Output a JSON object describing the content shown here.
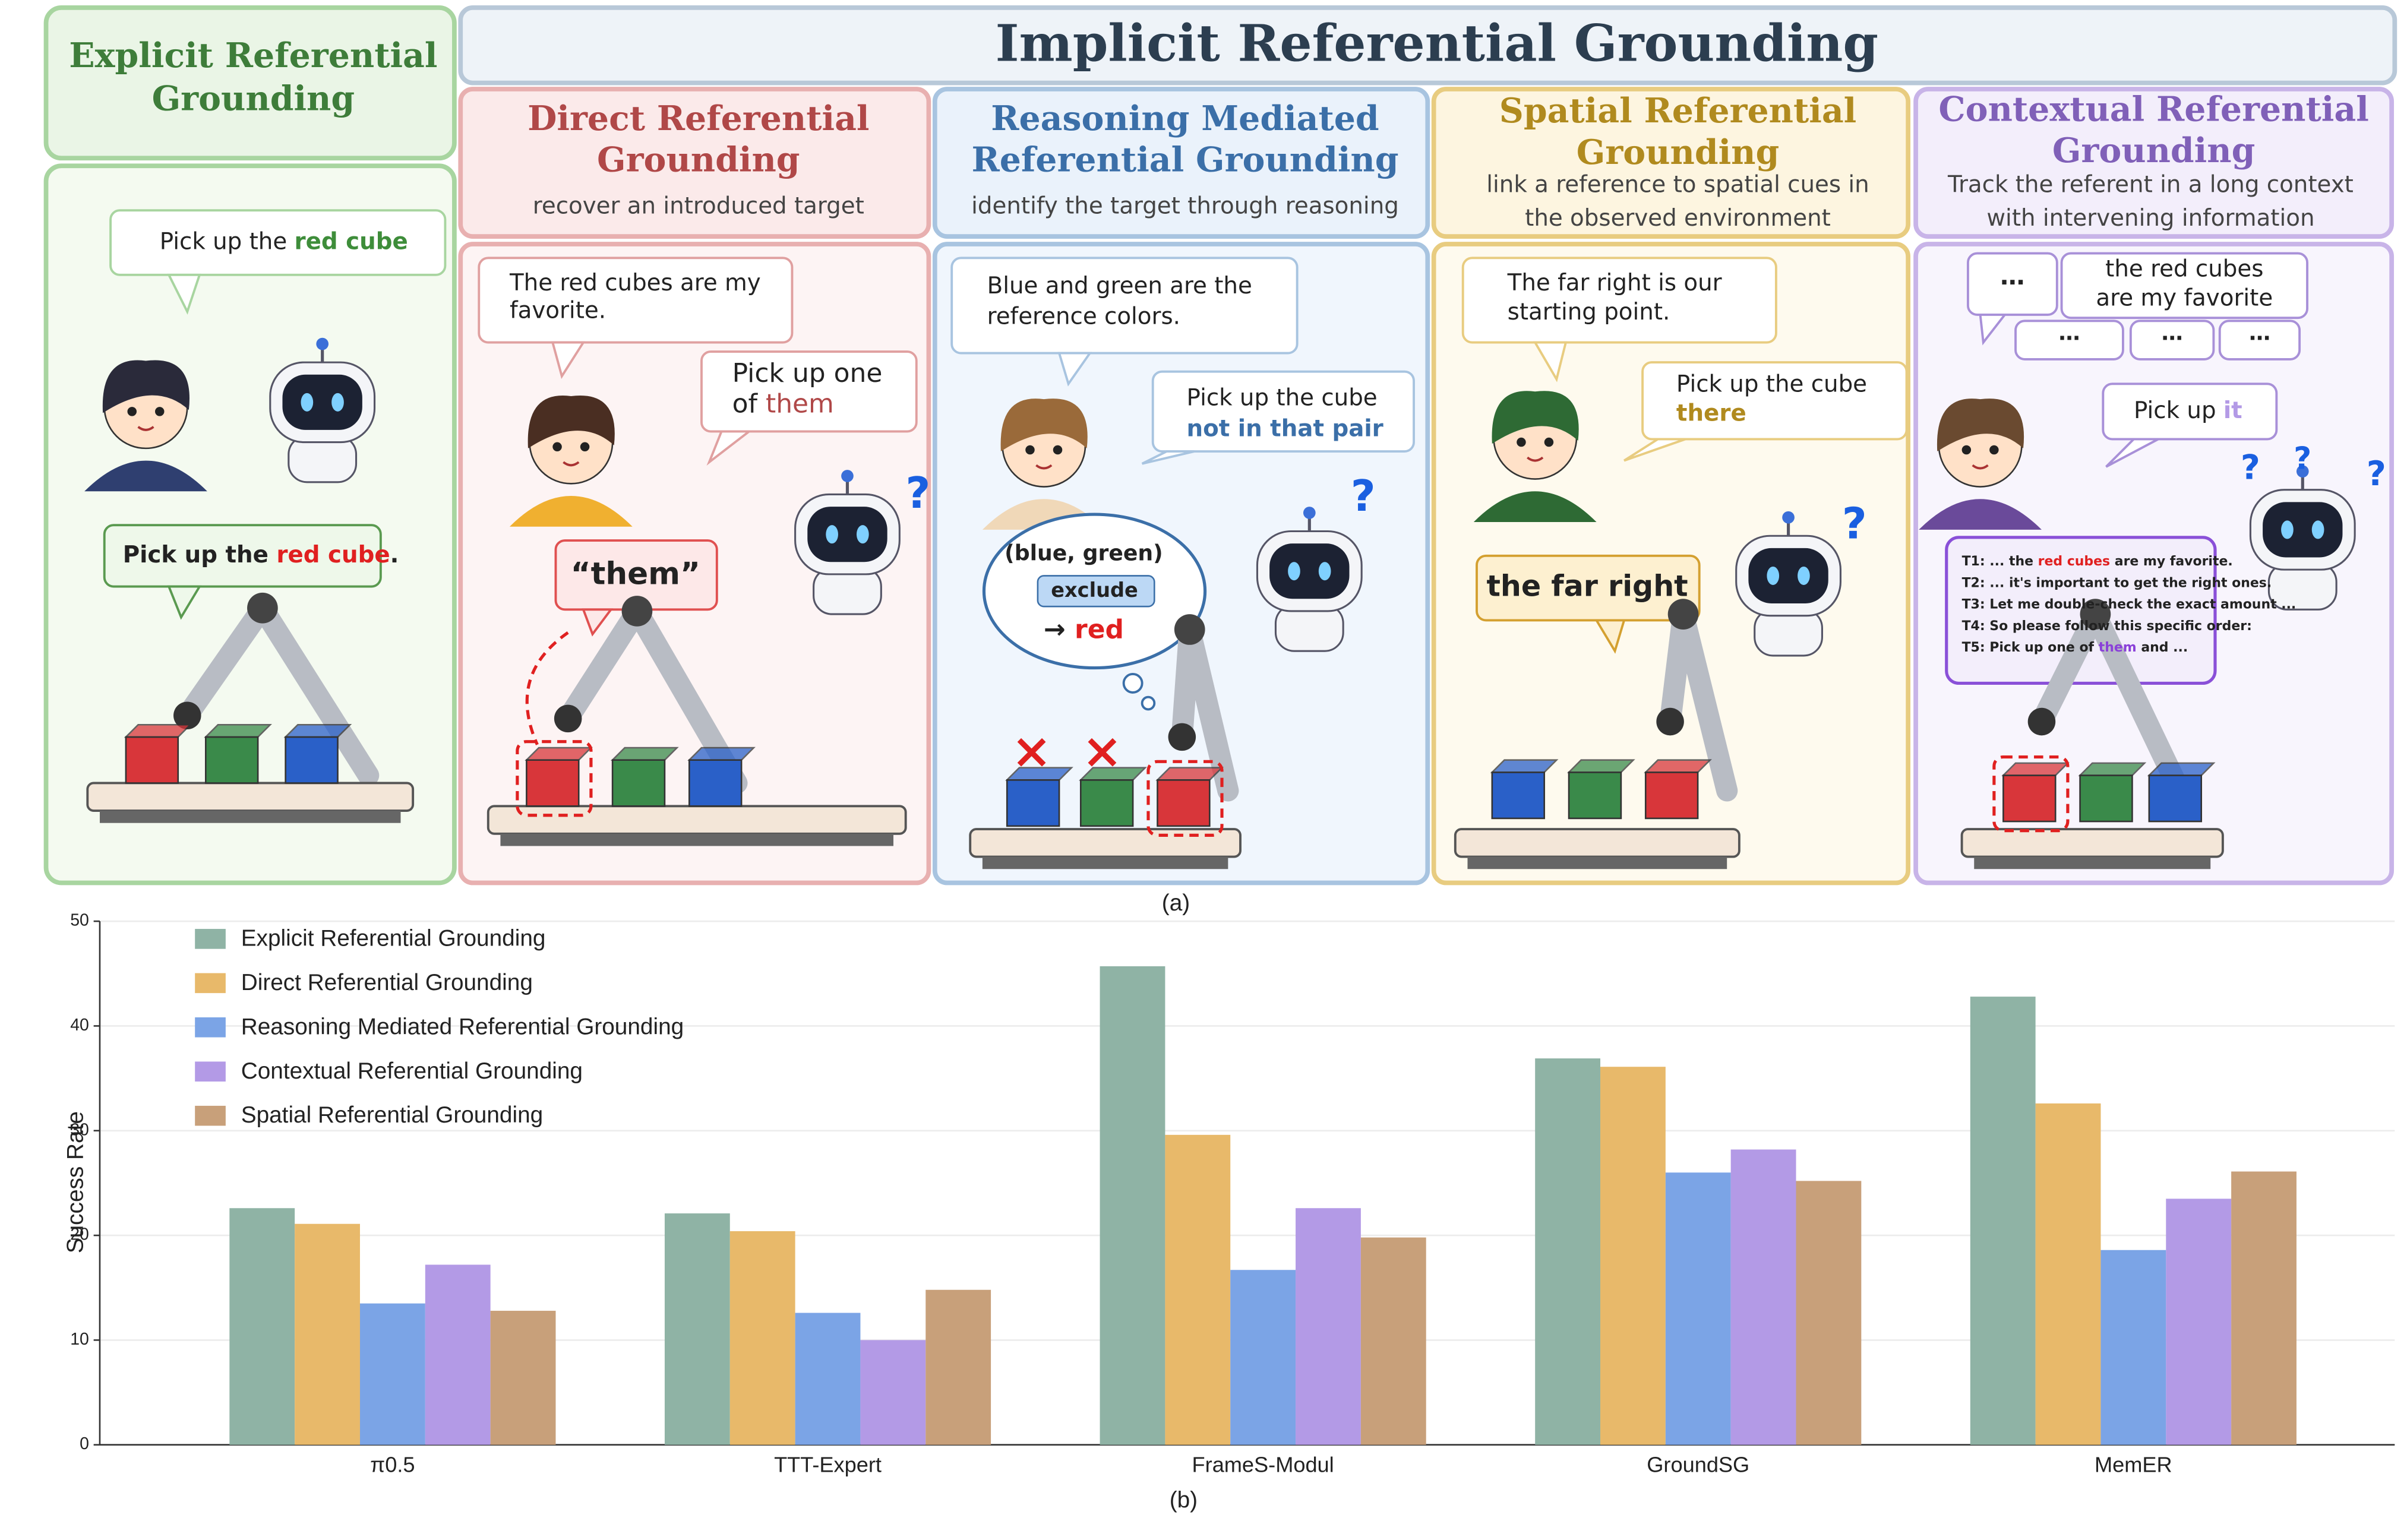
{
  "figure": {
    "caption_a": "(a)",
    "implicit_header": "Implicit Referential Grounding",
    "explicit": {
      "title": [
        "Explicit Referential",
        "Grounding"
      ],
      "bubble_1": [
        "Pick up the ",
        "red cube"
      ],
      "bubble_2": [
        "Pick up the ",
        "red cube",
        "."
      ]
    },
    "direct": {
      "title": [
        "Direct Referential",
        "Grounding"
      ],
      "subtitle": [
        "recover an introduced target"
      ],
      "bubble_1": [
        "The red cubes are my",
        "favorite."
      ],
      "bubble_2": [
        "Pick up one",
        "of ",
        "them"
      ],
      "callout": "“them”"
    },
    "reasoning": {
      "title": [
        "Reasoning Mediated",
        "Referential Grounding"
      ],
      "subtitle": [
        "identify the target through reasoning"
      ],
      "bubble_1": [
        "Blue and green are the",
        "reference colors."
      ],
      "bubble_2": [
        "Pick up the cube",
        "not in that pair"
      ],
      "thought": [
        "(blue, green)",
        "exclude",
        "→ ",
        "red"
      ]
    },
    "spatial": {
      "title": [
        "Spatial Referential",
        "Grounding"
      ],
      "subtitle": [
        "link a reference to spatial cues in",
        "the observed environment"
      ],
      "bubble_1": [
        "The far right is our",
        "starting point."
      ],
      "bubble_2": [
        "Pick up the cube",
        "there"
      ],
      "callout": "the far right"
    },
    "contextual": {
      "title": [
        "Contextual Referential",
        "Grounding"
      ],
      "subtitle": [
        "Track the referent in a long context",
        "with intervening information"
      ],
      "bubbles": [
        "⋯",
        "the red cubes",
        "are my favorite",
        "⋯",
        "⋯",
        "⋯"
      ],
      "bubble_2": [
        "Pick up ",
        "it"
      ],
      "transcript": [
        [
          "T1:  ... the ",
          "red cubes",
          " are my favorite."
        ],
        [
          "T2:  ... it's important to get the right ones."
        ],
        [
          "T3:  Let me double-check the exact amount ..."
        ],
        [
          "T4:  So please follow this specific order:"
        ],
        [
          "T5:  Pick up one of ",
          "them",
          " and ..."
        ]
      ]
    }
  },
  "chart_data": {
    "type": "bar",
    "caption": "(b)",
    "ylabel": "Success Rate",
    "categories": [
      "π0.5",
      "TTT-Expert",
      "FrameS-Modul",
      "GroundSG",
      "MemER"
    ],
    "series": [
      {
        "name": "Explicit Referential Grounding",
        "color": "#8fb3a5",
        "values": [
          22.6,
          22.1,
          45.7,
          36.9,
          42.8
        ]
      },
      {
        "name": "Direct Referential Grounding",
        "color": "#e8b96a",
        "values": [
          21.1,
          20.4,
          29.6,
          36.1,
          32.6
        ]
      },
      {
        "name": "Reasoning Mediated Referential Grounding",
        "color": "#7ba4e6",
        "values": [
          13.5,
          12.6,
          16.7,
          26.0,
          18.6
        ]
      },
      {
        "name": "Contextual Referential Grounding",
        "color": "#b39ae6",
        "values": [
          17.2,
          10.0,
          22.6,
          28.2,
          23.5
        ]
      },
      {
        "name": "Spatial Referential Grounding",
        "color": "#c8a07a",
        "values": [
          12.8,
          14.8,
          19.8,
          25.2,
          26.1
        ]
      }
    ],
    "ylim": [
      0,
      50
    ],
    "yticks": [
      0,
      10,
      20,
      30,
      40,
      50
    ],
    "grid": true,
    "legend": "upper left"
  }
}
